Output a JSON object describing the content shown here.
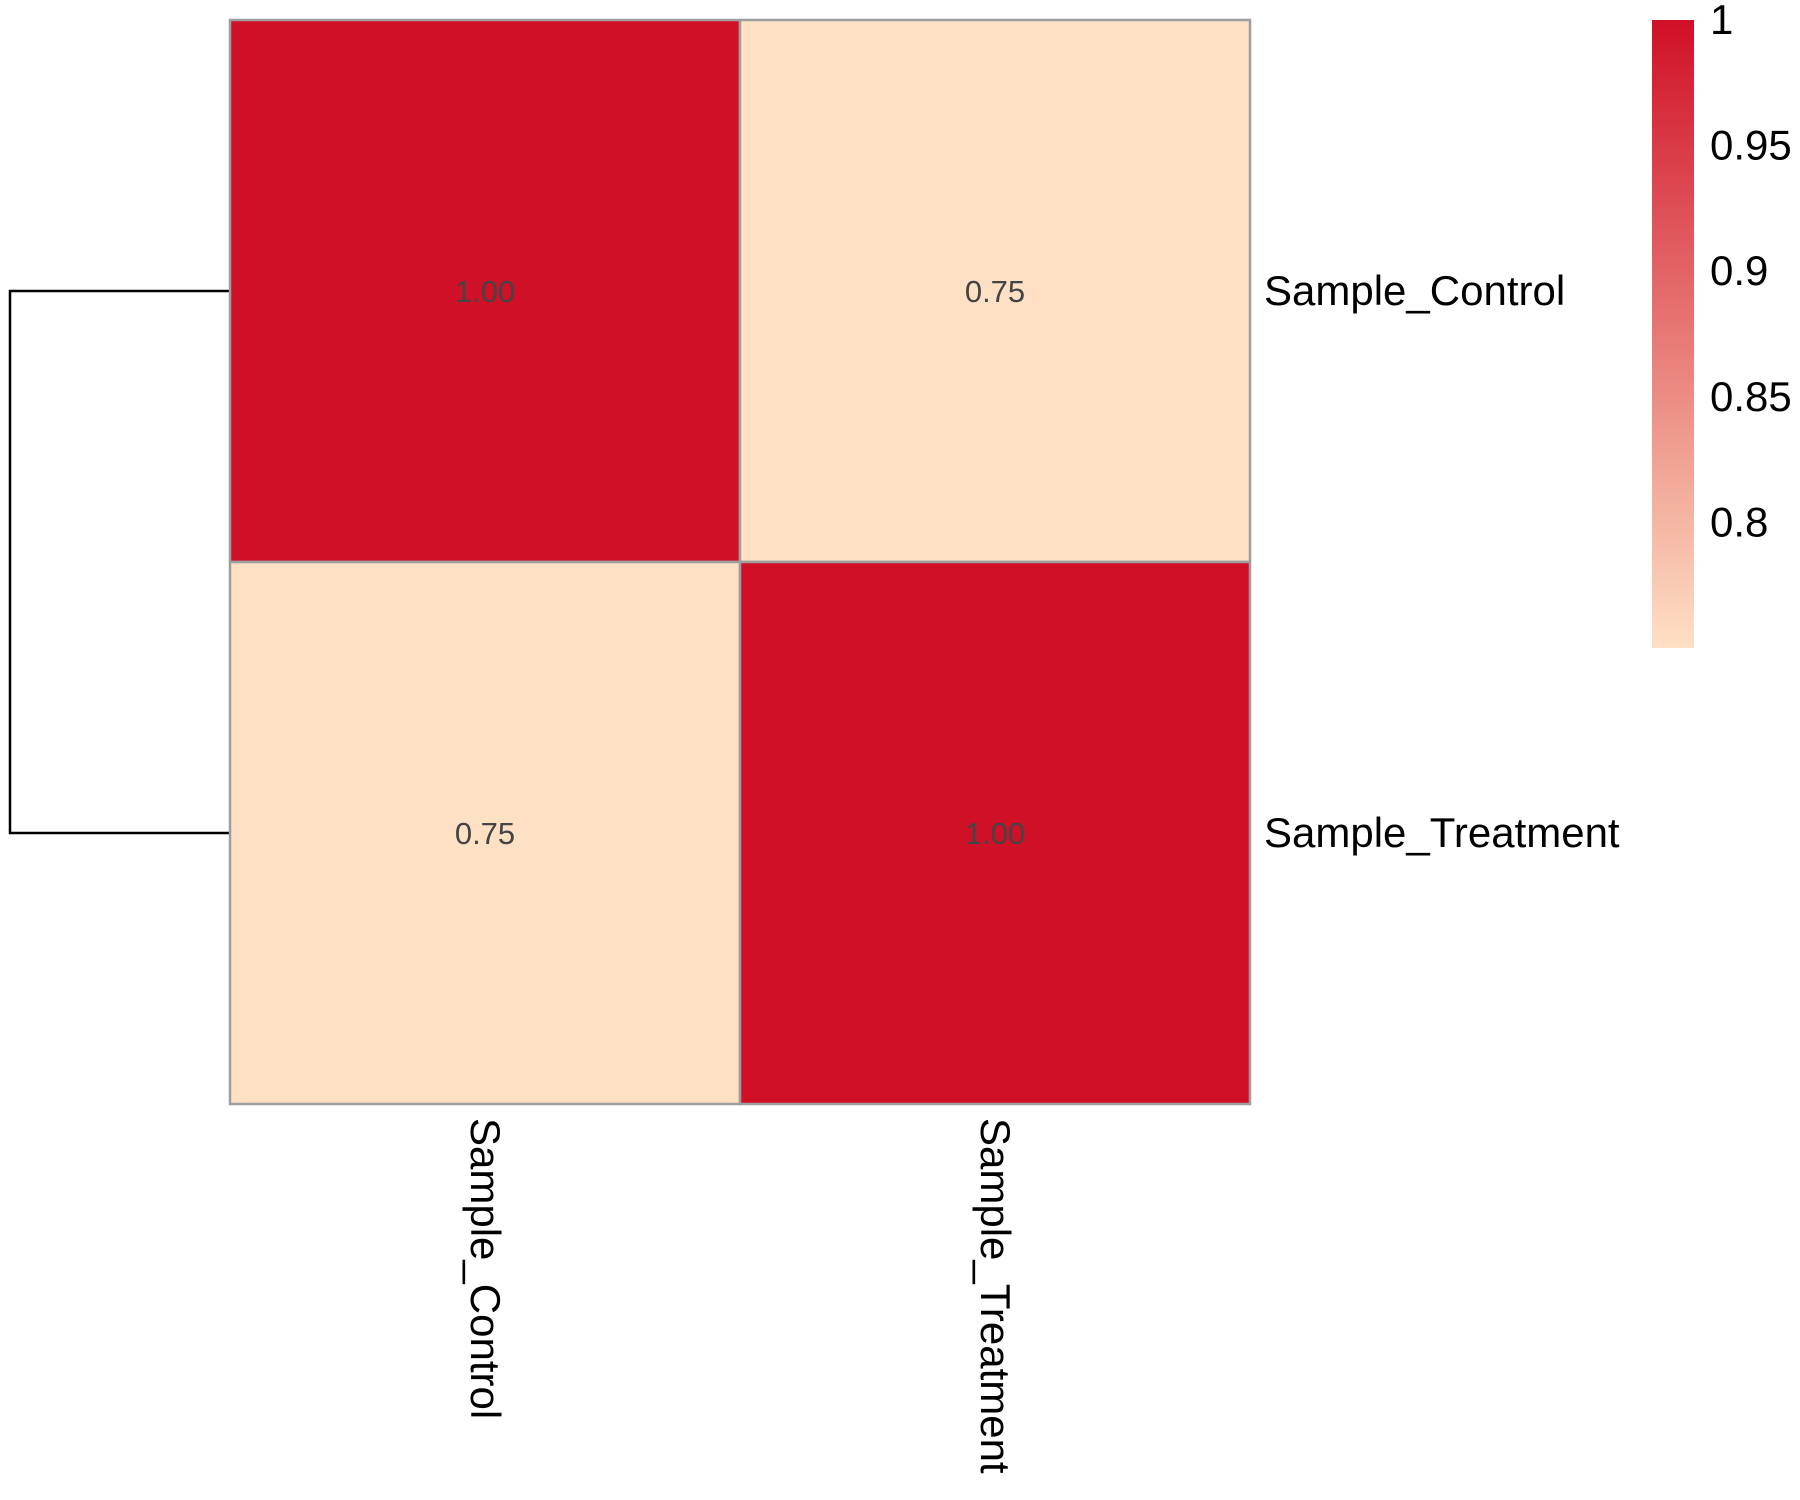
{
  "chart_data": {
    "type": "heatmap",
    "title": "",
    "rows": [
      "Sample_Control",
      "Sample_Treatment"
    ],
    "columns": [
      "Sample_Control",
      "Sample_Treatment"
    ],
    "values": [
      [
        1.0,
        0.75
      ],
      [
        0.75,
        1.0
      ]
    ],
    "cell_labels": [
      [
        "1.00",
        "0.75"
      ],
      [
        "0.75",
        "1.00"
      ]
    ],
    "row_dendrogram": true,
    "column_dendrogram": false,
    "color_scale": {
      "min": 0.75,
      "max": 1.0,
      "low_color": "#FEE0C4",
      "high_color": "#D01027",
      "ticks": [
        1,
        0.95,
        0.9,
        0.85,
        0.8
      ],
      "tick_labels": [
        "1",
        "0.95",
        "0.9",
        "0.85",
        "0.8"
      ]
    },
    "legend_placement": "right",
    "colors": {
      "cell_border": "#9E9E9E",
      "dendrogram": "#000000",
      "cell_text": "#444444"
    }
  }
}
